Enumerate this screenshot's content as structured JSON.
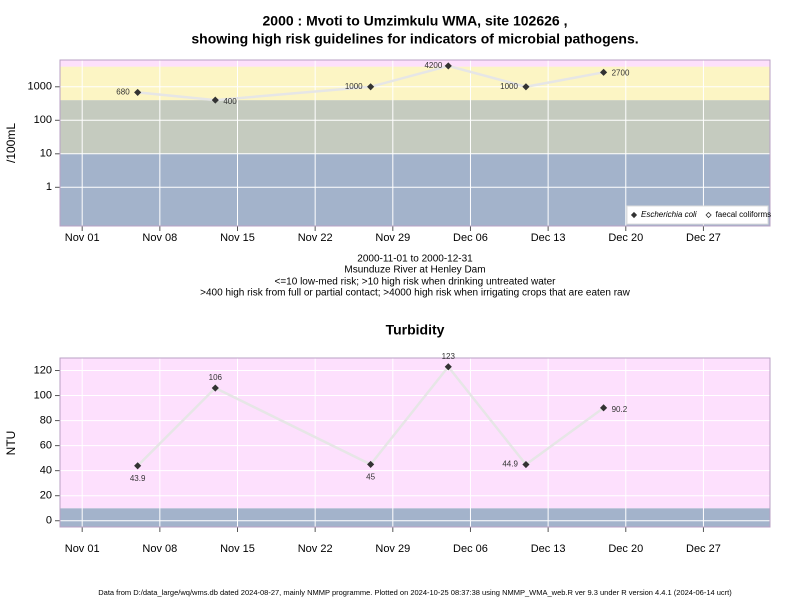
{
  "chart_data": [
    {
      "type": "line",
      "title": [
        "2000 : Mvoti to Umzimkulu WMA, site 102626 ,",
        "showing high risk guidelines for indicators of microbial pathogens."
      ],
      "y_label": "/100mL",
      "log_y": true,
      "x": [
        "2000-11-06",
        "2000-11-13",
        "2000-11-27",
        "2000-12-04",
        "2000-12-11",
        "2000-12-18"
      ],
      "series": [
        {
          "name": "Escherichia coli",
          "color": "#333333",
          "marker": "filled",
          "values": [
            680,
            400,
            1000,
            4200,
            1000,
            2700
          ]
        },
        {
          "name": "faecal coliforms",
          "color": "#333333",
          "marker": "open",
          "values": [
            null,
            null,
            null,
            null,
            null,
            null
          ]
        }
      ],
      "xlim": [
        "2000-10-30",
        "2001-01-02"
      ],
      "xticks": [
        {
          "value": "2000-11-01",
          "label": "Nov 01"
        },
        {
          "value": "2000-11-08",
          "label": "Nov 08"
        },
        {
          "value": "2000-11-15",
          "label": "Nov 15"
        },
        {
          "value": "2000-11-22",
          "label": "Nov 22"
        },
        {
          "value": "2000-11-29",
          "label": "Nov 29"
        },
        {
          "value": "2000-12-06",
          "label": "Dec 06"
        },
        {
          "value": "2000-12-13",
          "label": "Dec 13"
        },
        {
          "value": "2000-12-20",
          "label": "Dec 20"
        },
        {
          "value": "2000-12-27",
          "label": "Dec 27"
        }
      ],
      "ylim": [
        0.07,
        6300
      ],
      "yticks": [
        1,
        10,
        100,
        1000
      ],
      "band_limits": [
        10,
        400,
        4000
      ],
      "band_colors": [
        "#a3b3cb",
        "#c5cbbf",
        "#fcf5c4",
        "#fde0fb"
      ],
      "grid": true,
      "legend": "bottom right",
      "notes": [
        "2000-11-01 to 2000-12-31",
        "Msunduze River at Henley Dam",
        "<=10 low-med risk; >10 high risk when drinking untreated water",
        ">400 high risk from full or partial contact; >4000 high risk when irrigating crops that are eaten raw"
      ]
    },
    {
      "type": "line",
      "title": "Turbidity",
      "y_label": "NTU",
      "x": [
        "2000-11-06",
        "2000-11-13",
        "2000-11-27",
        "2000-12-04",
        "2000-12-11",
        "2000-12-18"
      ],
      "series": [
        {
          "color": "#333333",
          "marker": "filled",
          "values": [
            43.9,
            106,
            45,
            123,
            44.9,
            90.2
          ]
        }
      ],
      "xlim": [
        "2000-10-30",
        "2001-01-02"
      ],
      "xticks": [
        {
          "value": "2000-11-01",
          "label": "Nov 01"
        },
        {
          "value": "2000-11-08",
          "label": "Nov 08"
        },
        {
          "value": "2000-11-15",
          "label": "Nov 15"
        },
        {
          "value": "2000-11-22",
          "label": "Nov 22"
        },
        {
          "value": "2000-11-29",
          "label": "Nov 29"
        },
        {
          "value": "2000-12-06",
          "label": "Dec 06"
        },
        {
          "value": "2000-12-13",
          "label": "Dec 13"
        },
        {
          "value": "2000-12-20",
          "label": "Dec 20"
        },
        {
          "value": "2000-12-27",
          "label": "Dec 27"
        }
      ],
      "ylim": [
        -5,
        130
      ],
      "yticks": [
        0,
        20,
        40,
        60,
        80,
        100,
        120
      ],
      "band_limits": [
        10
      ],
      "band_colors": [
        "#a3b3cb",
        "#fde0fd"
      ],
      "grid": true
    }
  ],
  "footer": "Data from D:/data_large/wq/wms.db dated 2024-08-27, mainly NMMP programme. Plotted on 2024-10-25 08:37:38 using NMMP_WMA_web.R ver 9.3 under R version 4.4.1 (2024-06-14 ucrt)"
}
